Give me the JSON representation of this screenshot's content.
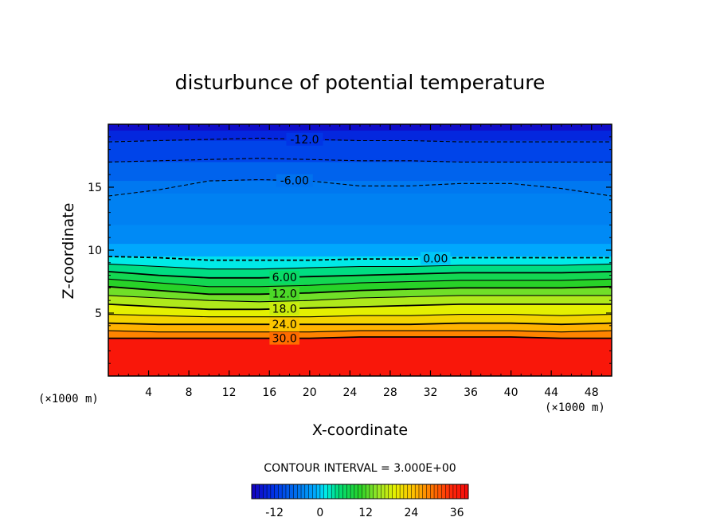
{
  "chart_data": {
    "type": "heatmap",
    "title": "disturbunce of potential temperature",
    "xlabel": "X-coordinate",
    "ylabel": "Z-coordinate",
    "x_unit_label_left": "(×1000 m)",
    "x_unit_label_right": "(×1000 m)",
    "xlim": [
      0,
      50
    ],
    "ylim": [
      0,
      20
    ],
    "x_ticks": [
      4,
      8,
      12,
      16,
      20,
      24,
      28,
      32,
      36,
      40,
      44,
      48
    ],
    "y_ticks": [
      5,
      10,
      15
    ],
    "contour_interval_text": "CONTOUR INTERVAL = 3.000E+00",
    "contour_interval": 3,
    "value_range": [
      -18,
      39
    ],
    "colorbar_ticks": [
      "-12",
      "0",
      "12",
      "24",
      "36"
    ],
    "colorbar_tick_values": [
      -12,
      0,
      12,
      24,
      36
    ],
    "contour_labels": [
      {
        "text": "-12.0",
        "value": -12,
        "x": 19.5
      },
      {
        "text": "-6.00",
        "value": -6,
        "x": 18.5
      },
      {
        "text": "0.00",
        "value": 0,
        "x": 32.5
      },
      {
        "text": "6.00",
        "value": 6,
        "x": 17.5
      },
      {
        "text": "12.0",
        "value": 12,
        "x": 17.5
      },
      {
        "text": "18.0",
        "value": 18,
        "x": 17.5
      },
      {
        "text": "24.0",
        "value": 24,
        "x": 17.5
      },
      {
        "text": "30.0",
        "value": 30,
        "x": 17.5
      }
    ],
    "contour_levels": [
      {
        "value": -12,
        "style": "dashed",
        "z": [
          18.6,
          18.7,
          18.8,
          18.9,
          18.8,
          18.7,
          18.7,
          18.6,
          18.6,
          18.6,
          18.6
        ]
      },
      {
        "value": -9,
        "style": "dashed",
        "z": [
          17.0,
          17.1,
          17.2,
          17.3,
          17.2,
          17.1,
          17.1,
          17.0,
          17.0,
          17.0,
          17.0
        ]
      },
      {
        "value": -6,
        "style": "dashed",
        "z": [
          14.3,
          14.8,
          15.5,
          15.6,
          15.5,
          15.1,
          15.1,
          15.3,
          15.3,
          14.9,
          14.3
        ]
      },
      {
        "value": 0,
        "style": "dashed",
        "z": [
          9.5,
          9.4,
          9.2,
          9.2,
          9.2,
          9.3,
          9.3,
          9.4,
          9.4,
          9.4,
          9.4
        ]
      },
      {
        "value": 3,
        "style": "solid",
        "z": [
          8.9,
          8.7,
          8.5,
          8.5,
          8.6,
          8.7,
          8.7,
          8.8,
          8.8,
          8.8,
          8.9
        ]
      },
      {
        "value": 6,
        "style": "solid",
        "z": [
          8.3,
          8.0,
          7.8,
          7.8,
          7.9,
          8.0,
          8.1,
          8.2,
          8.2,
          8.2,
          8.3
        ]
      },
      {
        "value": 9,
        "style": "solid",
        "z": [
          7.7,
          7.4,
          7.1,
          7.1,
          7.2,
          7.4,
          7.5,
          7.6,
          7.6,
          7.6,
          7.7
        ]
      },
      {
        "value": 12,
        "style": "solid",
        "z": [
          7.1,
          6.8,
          6.5,
          6.5,
          6.6,
          6.8,
          6.9,
          7.0,
          7.0,
          7.0,
          7.1
        ]
      },
      {
        "value": 15,
        "style": "solid",
        "z": [
          6.4,
          6.2,
          6.0,
          5.9,
          6.0,
          6.2,
          6.3,
          6.4,
          6.4,
          6.4,
          6.4
        ]
      },
      {
        "value": 18,
        "style": "solid",
        "z": [
          5.7,
          5.5,
          5.3,
          5.3,
          5.4,
          5.5,
          5.6,
          5.7,
          5.7,
          5.7,
          5.7
        ]
      },
      {
        "value": 21,
        "style": "solid",
        "z": [
          4.9,
          4.8,
          4.7,
          4.7,
          4.7,
          4.8,
          4.8,
          4.9,
          4.9,
          4.8,
          4.9
        ]
      },
      {
        "value": 24,
        "style": "solid",
        "z": [
          4.2,
          4.1,
          4.1,
          4.1,
          4.1,
          4.1,
          4.1,
          4.2,
          4.2,
          4.1,
          4.2
        ]
      },
      {
        "value": 27,
        "style": "solid",
        "z": [
          3.6,
          3.5,
          3.5,
          3.5,
          3.5,
          3.6,
          3.6,
          3.6,
          3.6,
          3.5,
          3.6
        ]
      },
      {
        "value": 30,
        "style": "solid",
        "z": [
          3.0,
          3.0,
          3.0,
          3.0,
          3.0,
          3.1,
          3.1,
          3.1,
          3.1,
          3.0,
          3.0
        ]
      }
    ],
    "contour_x": [
      0,
      5,
      10,
      15,
      20,
      25,
      30,
      35,
      40,
      45,
      50
    ],
    "upper_profile": {
      "z": [
        20,
        19.5,
        18.7,
        17.0,
        15.5,
        14.5,
        13.5,
        12.0,
        10.5,
        9.5
      ],
      "value": [
        -18,
        -15,
        -12,
        -9,
        -6,
        -5,
        -4.5,
        -5,
        -3,
        0
      ]
    },
    "surface_value": 37
  }
}
